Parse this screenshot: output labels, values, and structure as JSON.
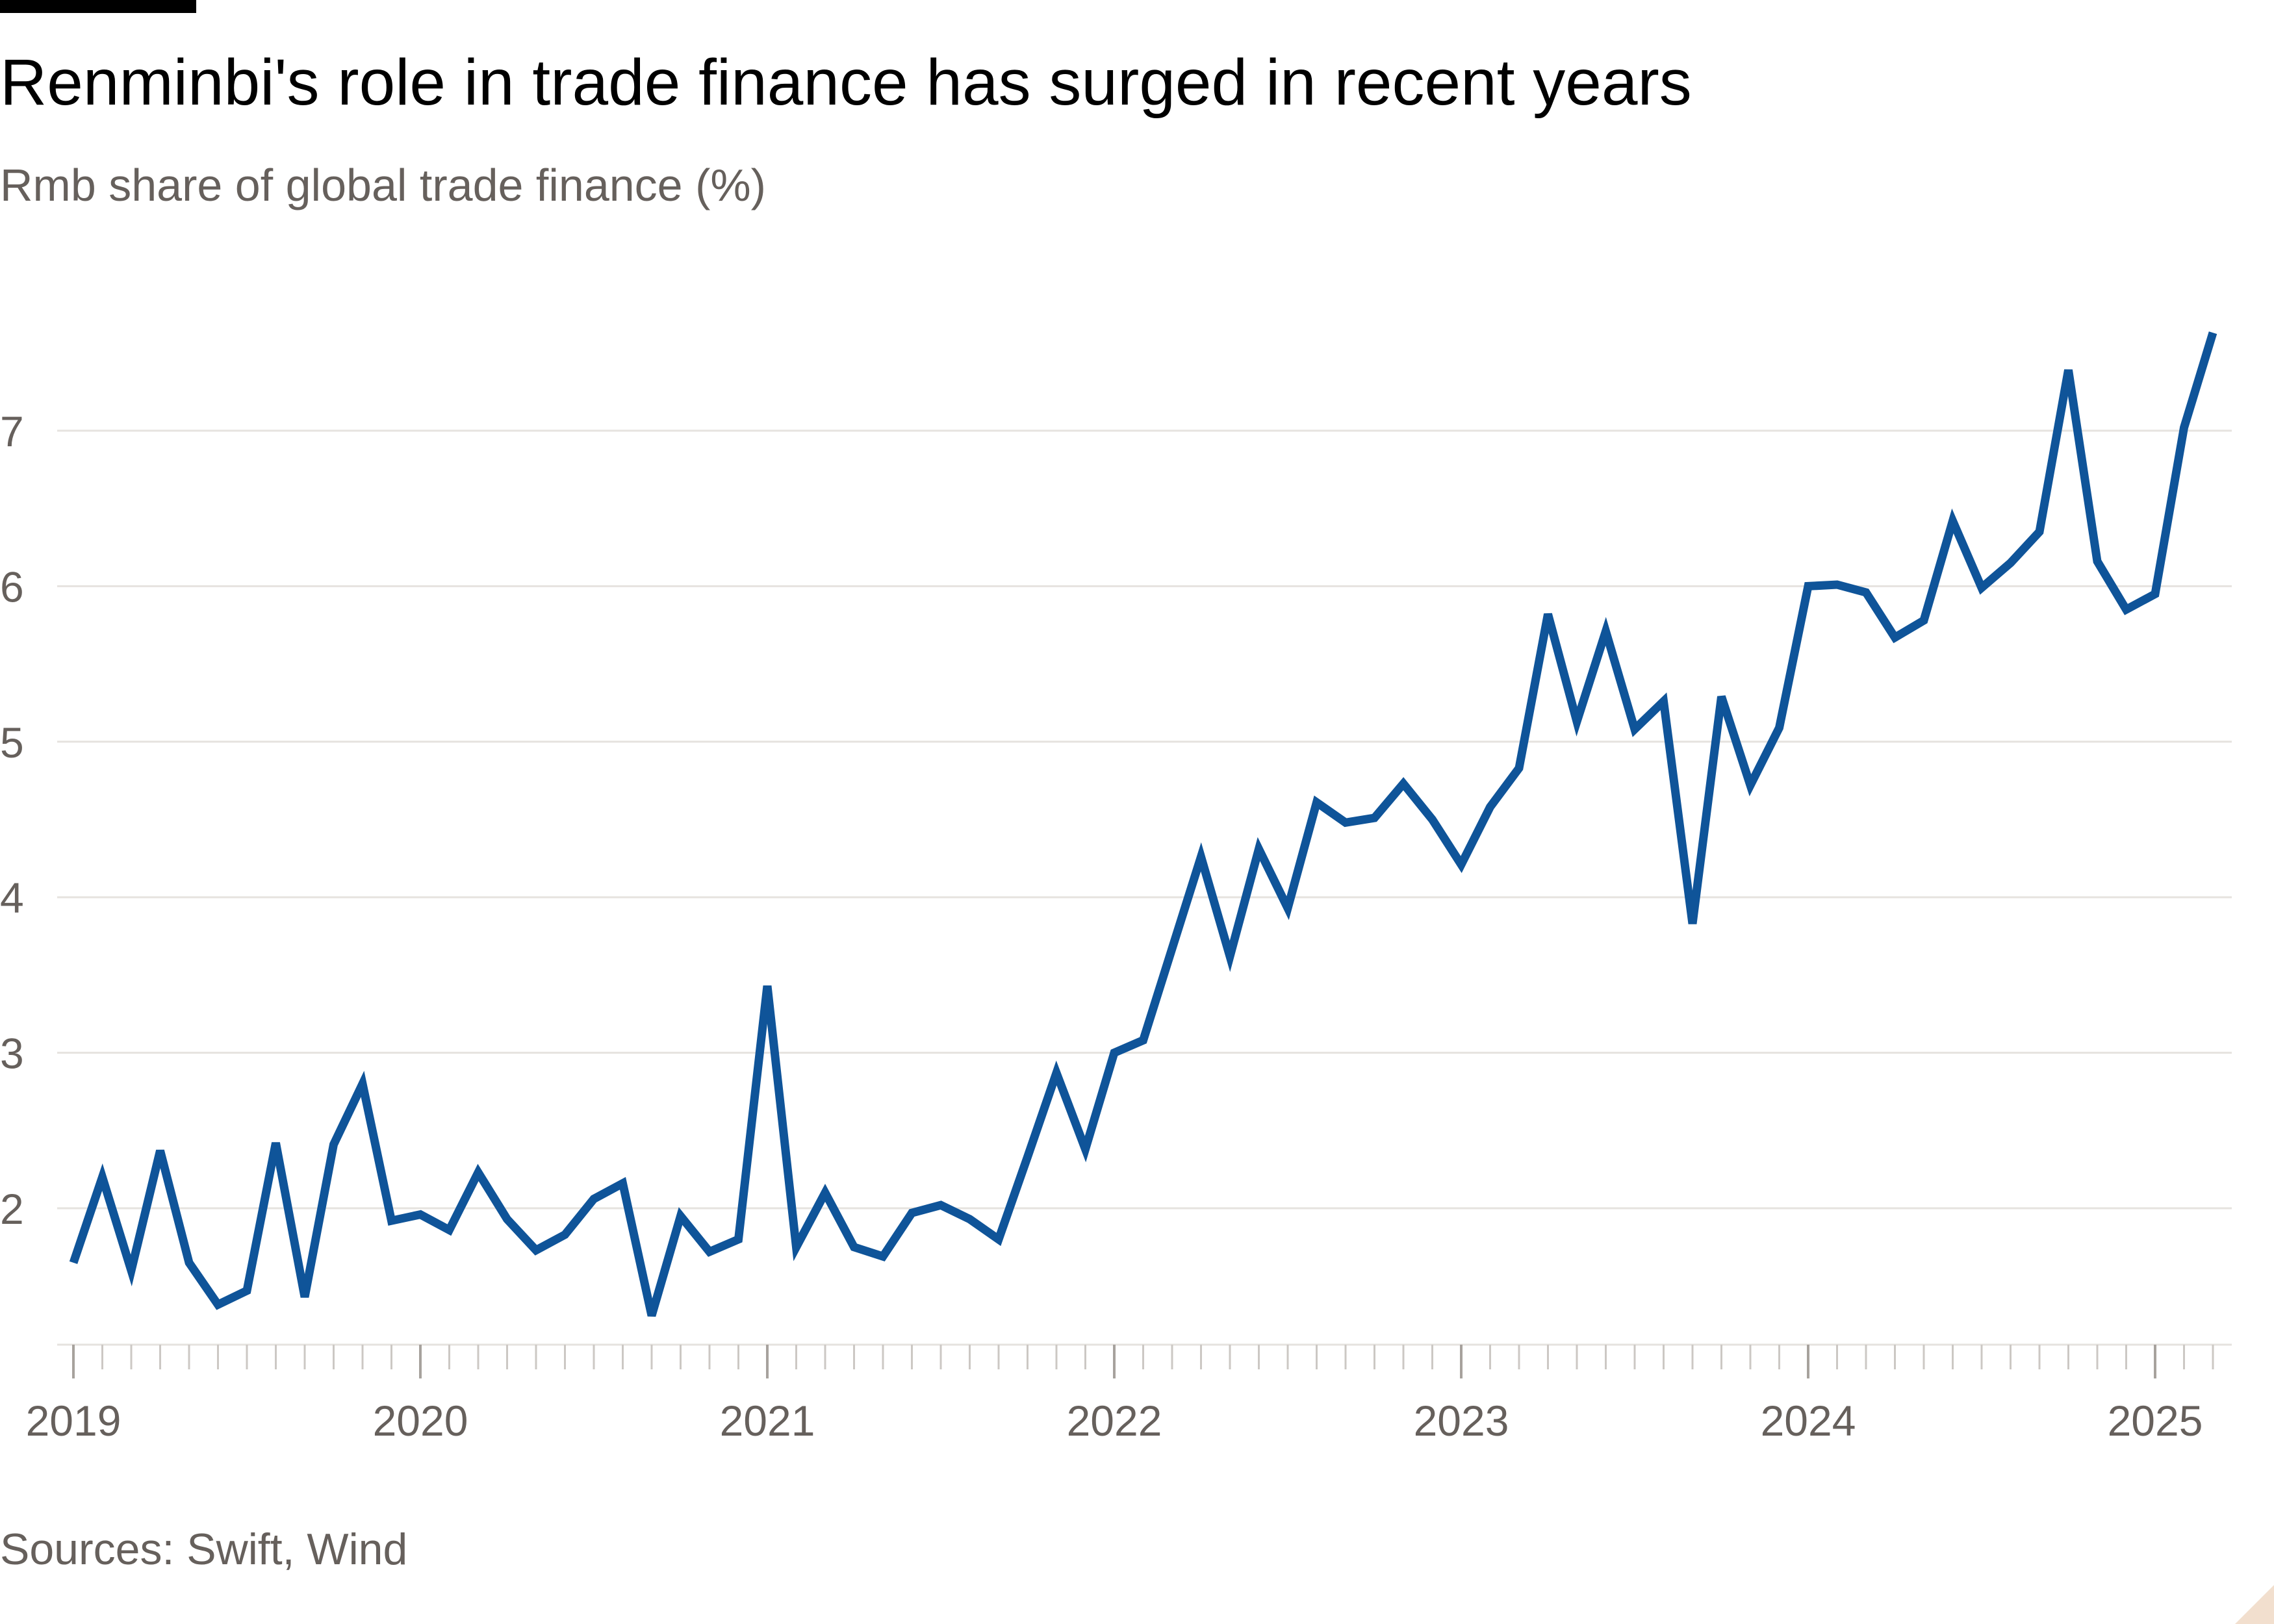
{
  "header": {
    "title": "Renminbi's role in trade finance has surged in recent years",
    "subtitle": "Rmb share of global trade finance (%)"
  },
  "footer": {
    "source": "Sources: Swift, Wind"
  },
  "colors": {
    "line": "#0f5499",
    "grid": "#e6e3df",
    "text": "#66605c",
    "title": "#000000"
  },
  "chart_data": {
    "type": "line",
    "title": "Renminbi's role in trade finance has surged in recent years",
    "subtitle": "Rmb share of global trade finance (%)",
    "xlabel": "",
    "ylabel": "",
    "ylim": [
      1.1,
      7.8
    ],
    "yticks": [
      2,
      3,
      4,
      5,
      6,
      7
    ],
    "xticks": [
      "2019",
      "2020",
      "2021",
      "2022",
      "2023",
      "2024",
      "2025"
    ],
    "grid": true,
    "x_start": "2019-01",
    "x_frequency": "monthly",
    "series": [
      {
        "values": [
          1.65,
          2.2,
          1.6,
          2.37,
          1.65,
          1.38,
          1.47,
          2.42,
          1.43,
          2.41,
          2.8,
          1.92,
          1.96,
          1.86,
          2.23,
          1.93,
          1.73,
          1.83,
          2.06,
          2.16,
          1.31,
          1.95,
          1.72,
          1.8,
          3.43,
          1.75,
          2.1,
          1.75,
          1.69,
          1.97,
          2.02,
          1.93,
          1.8,
          2.33,
          2.87,
          2.38,
          3.0,
          3.08,
          3.67,
          4.26,
          3.62,
          4.31,
          3.93,
          4.61,
          4.48,
          4.51,
          4.73,
          4.5,
          4.21,
          4.58,
          4.83,
          5.82,
          5.13,
          5.71,
          5.08,
          5.26,
          3.83,
          5.29,
          4.72,
          5.09,
          6.0,
          6.01,
          5.96,
          5.67,
          5.78,
          6.42,
          5.99,
          6.15,
          6.35,
          7.39,
          6.16,
          5.85,
          5.95,
          7.02,
          7.63
        ]
      }
    ]
  }
}
